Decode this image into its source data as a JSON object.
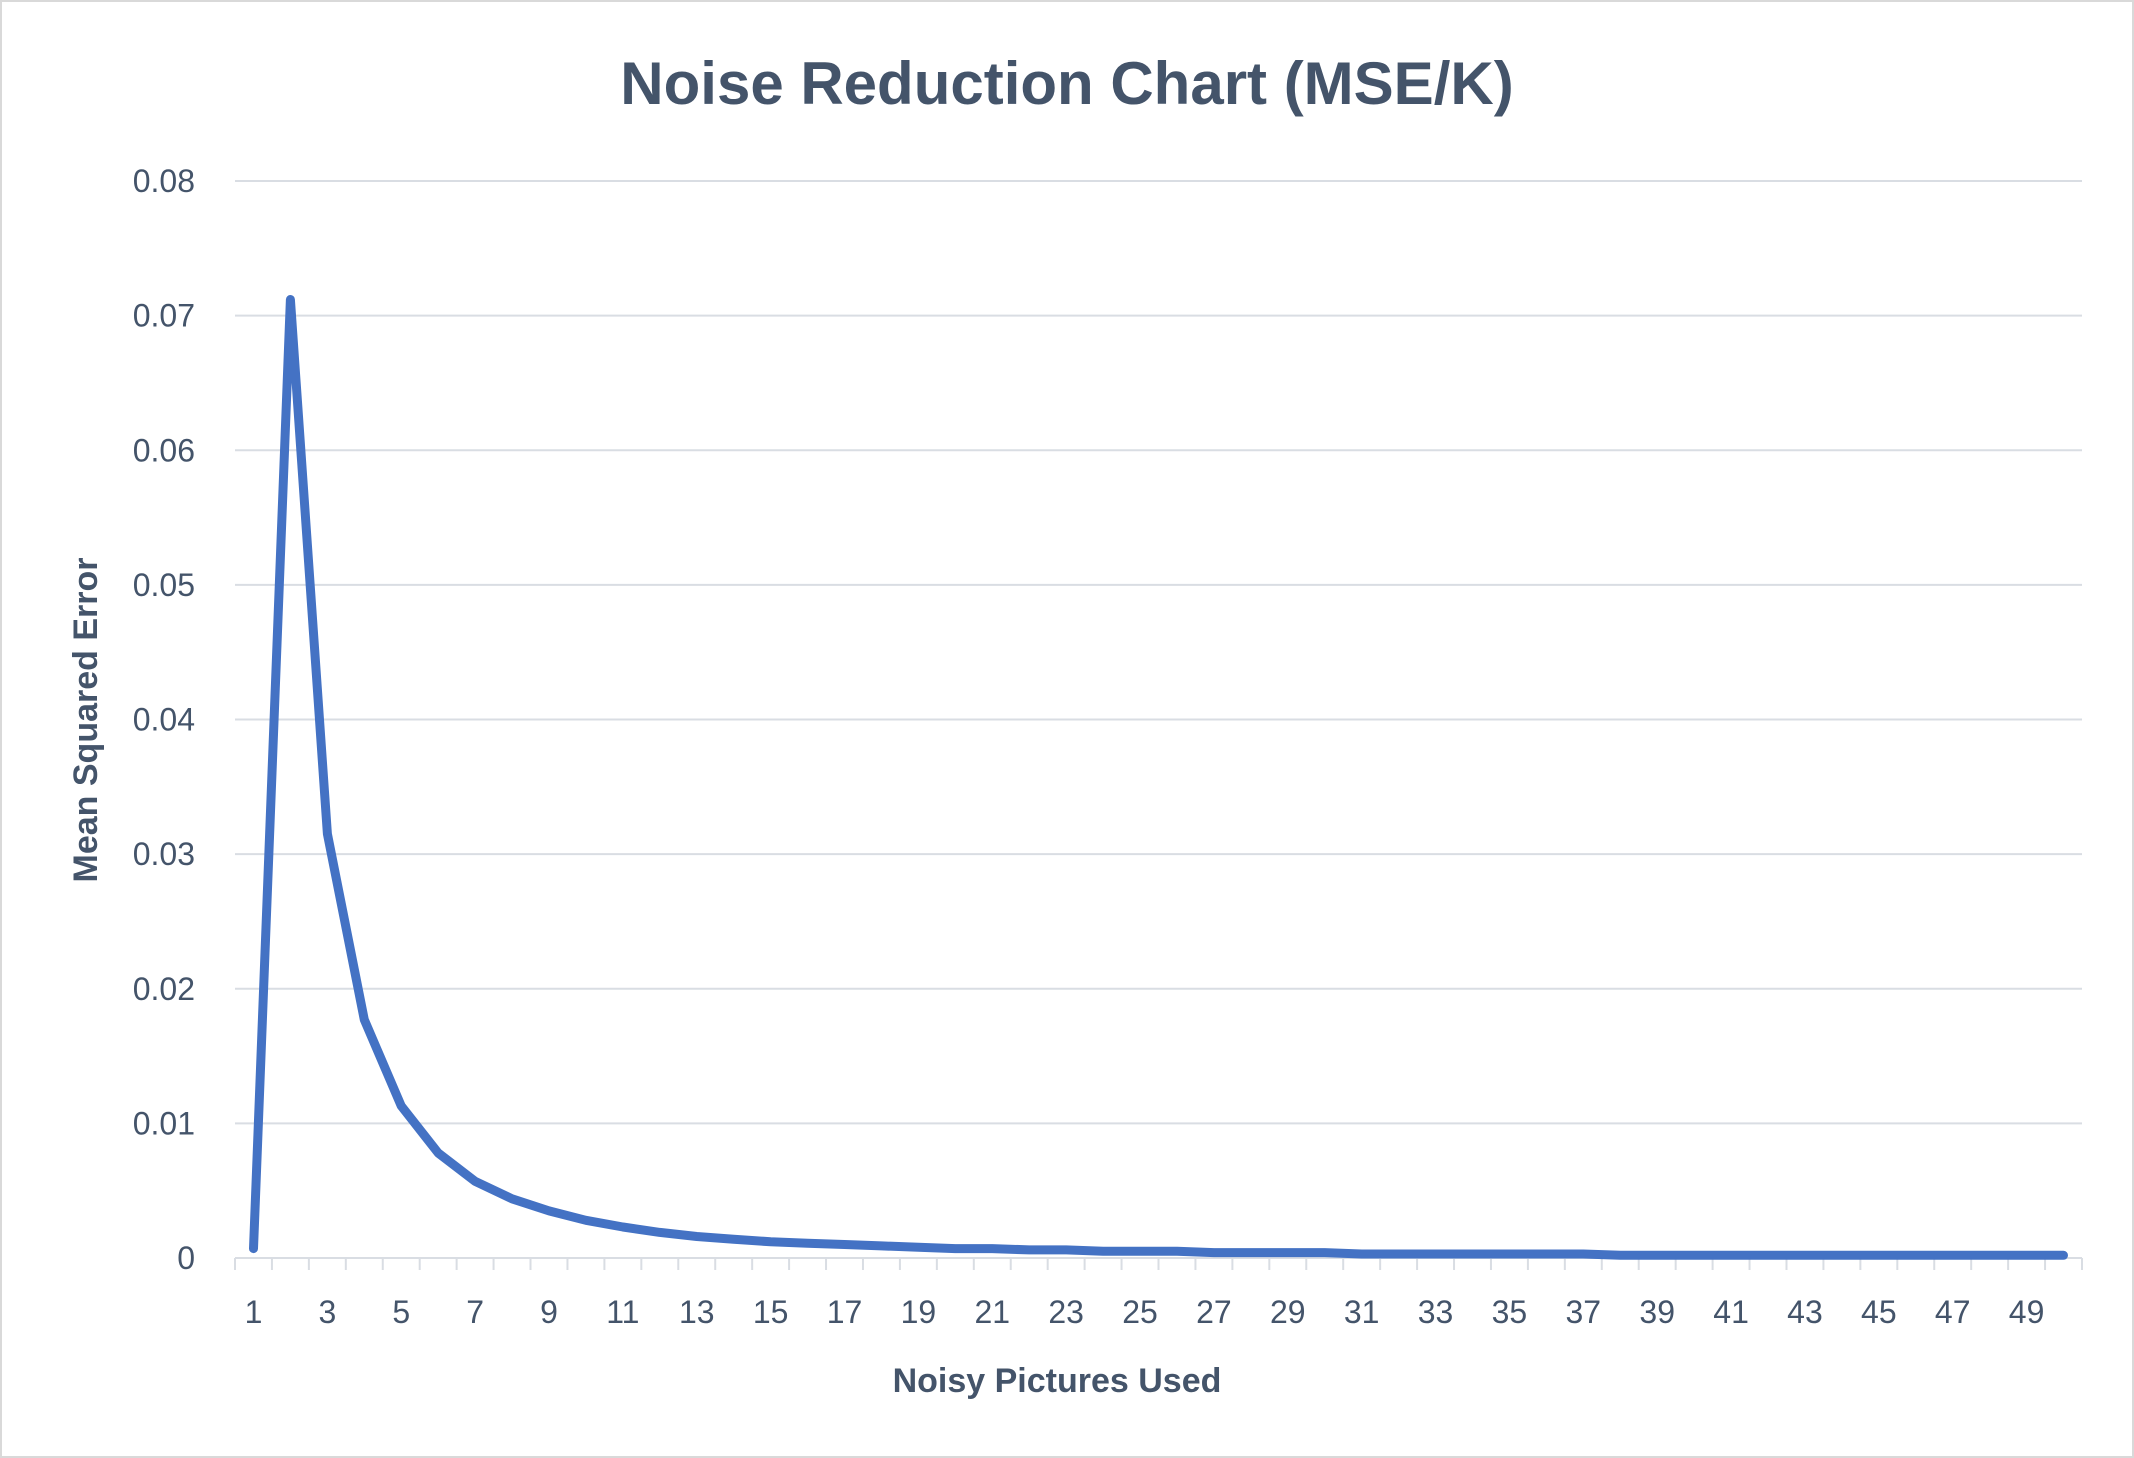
{
  "chart_data": {
    "type": "line",
    "title": "Noise Reduction Chart (MSE/K)",
    "xlabel": "Noisy Pictures Used",
    "ylabel": "Mean Squared Error",
    "ylim": [
      0,
      0.08
    ],
    "yticks": [
      "0",
      "0.01",
      "0.02",
      "0.03",
      "0.04",
      "0.05",
      "0.06",
      "0.07",
      "0.08"
    ],
    "x": [
      1,
      2,
      3,
      4,
      5,
      6,
      7,
      8,
      9,
      10,
      11,
      12,
      13,
      14,
      15,
      16,
      17,
      18,
      19,
      20,
      21,
      22,
      23,
      24,
      25,
      26,
      27,
      28,
      29,
      30,
      31,
      32,
      33,
      34,
      35,
      36,
      37,
      38,
      39,
      40,
      41,
      42,
      43,
      44,
      45,
      46,
      47,
      48,
      49,
      50
    ],
    "xtick_labels": [
      "1",
      "3",
      "5",
      "7",
      "9",
      "11",
      "13",
      "15",
      "17",
      "19",
      "21",
      "23",
      "25",
      "27",
      "29",
      "31",
      "33",
      "35",
      "37",
      "39",
      "41",
      "43",
      "45",
      "47",
      "49"
    ],
    "grid": true,
    "legend": "none",
    "series": [
      {
        "color": "#4472c4",
        "values": [
          0.0007,
          0.0712,
          0.0315,
          0.0177,
          0.0113,
          0.0078,
          0.0057,
          0.0044,
          0.0035,
          0.0028,
          0.0023,
          0.0019,
          0.0016,
          0.0014,
          0.0012,
          0.0011,
          0.001,
          0.0009,
          0.0008,
          0.0007,
          0.0007,
          0.0006,
          0.0006,
          0.0005,
          0.0005,
          0.0005,
          0.0004,
          0.0004,
          0.0004,
          0.0004,
          0.0003,
          0.0003,
          0.0003,
          0.0003,
          0.0003,
          0.0003,
          0.0003,
          0.0002,
          0.0002,
          0.0002,
          0.0002,
          0.0002,
          0.0002,
          0.0002,
          0.0002,
          0.0002,
          0.0002,
          0.0002,
          0.0002,
          0.0002
        ]
      }
    ]
  }
}
